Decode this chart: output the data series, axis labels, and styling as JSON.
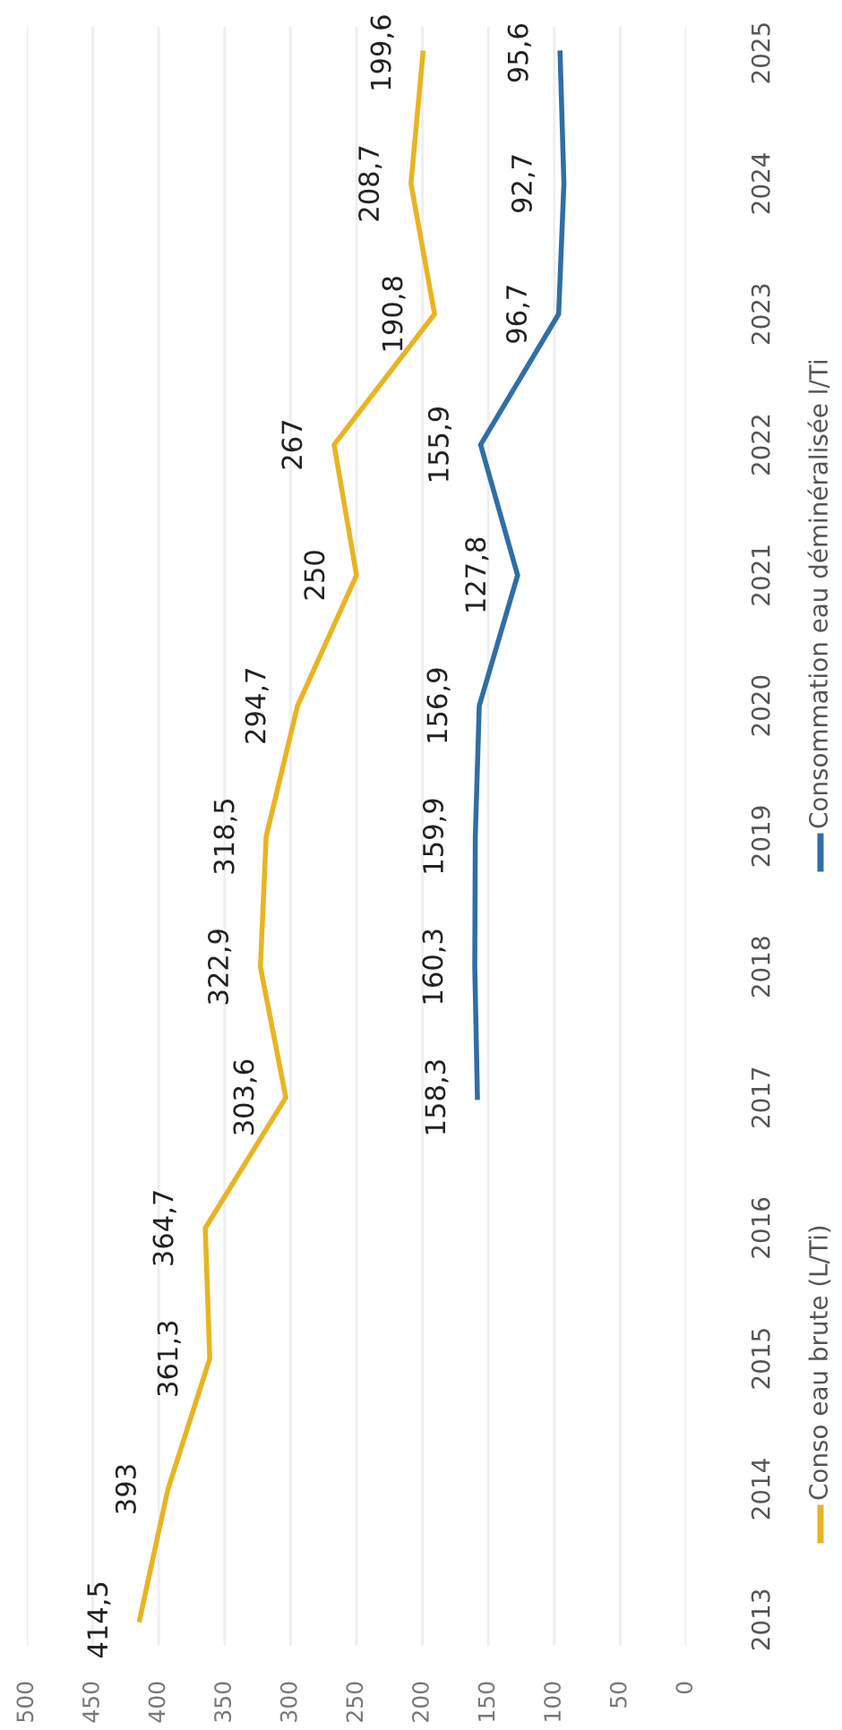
{
  "chart_data": {
    "type": "line",
    "orientation": "horizontal",
    "categories": [
      "2025",
      "2024",
      "2023",
      "2022",
      "2021",
      "2020",
      "2019",
      "2018",
      "2017",
      "2016",
      "2015",
      "2014",
      "2013"
    ],
    "series": [
      {
        "name": "Conso eau brute (L/Ti)",
        "color": "#e8b422",
        "values": [
          199.6,
          208.7,
          190.8,
          267,
          250,
          294.7,
          318.5,
          322.9,
          303.6,
          364.7,
          361.3,
          393,
          414.5
        ],
        "value_labels": [
          "199,6",
          "208,7",
          "190,8",
          "267",
          "250",
          "294,7",
          "318,5",
          "322,9",
          "303,6",
          "364,7",
          "361,3",
          "393",
          "414,5"
        ]
      },
      {
        "name": "Consommation eau déminéralisée l/Ti",
        "color": "#2f6ea6",
        "values": [
          95.6,
          92.7,
          96.7,
          155.9,
          127.8,
          156.9,
          159.9,
          160.3,
          158.3,
          null,
          null,
          null,
          null
        ],
        "value_labels": [
          "95,6",
          "92,7",
          "96,7",
          "155,9",
          "127,8",
          "156,9",
          "159,9",
          "160,3",
          "158,3",
          null,
          null,
          null,
          null
        ]
      }
    ],
    "xlim": [
      500,
      0
    ],
    "xticks": [
      0,
      50,
      100,
      150,
      200,
      250,
      300,
      350,
      400,
      450,
      500
    ],
    "grid": "x",
    "legend": "right",
    "marker": "none",
    "line_style": "solid"
  }
}
